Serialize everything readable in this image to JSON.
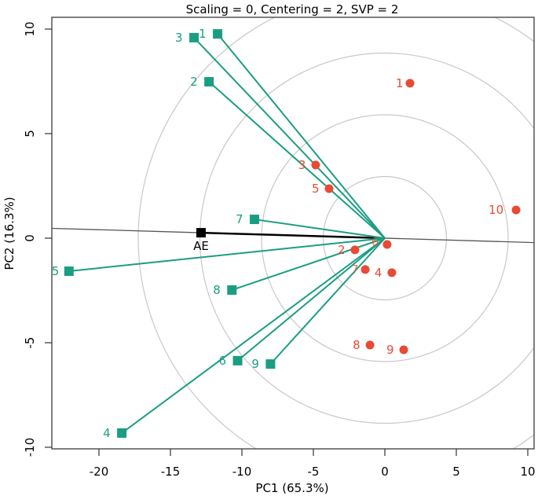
{
  "chart_data": {
    "type": "scatter",
    "title": "Scaling = 0, Centering = 2, SVP = 2",
    "xlabel": "PC1 (65.3%)",
    "ylabel": "PC2 (16.3%)",
    "xlim": [
      -23.3,
      10.4
    ],
    "ylim": [
      -10.1,
      10.5
    ],
    "xticks": [
      -20,
      -15,
      -10,
      -5,
      0,
      5,
      10
    ],
    "yticks": [
      -10,
      -5,
      0,
      5,
      10
    ],
    "xtick_labels": [
      "-20",
      "-15",
      "-10",
      "-5",
      "0",
      "5",
      "10"
    ],
    "ytick_labels": [
      "-10",
      "-5",
      "0",
      "5",
      "10"
    ],
    "grid": false,
    "colors": {
      "columns": "#1a9e82",
      "rows": "#e84a35",
      "axis_line": "#000000",
      "circles": "#c8c8c8"
    },
    "column_markers": [
      {
        "label": "1",
        "x": -11.7,
        "y": 9.77
      },
      {
        "label": "2",
        "x": -12.3,
        "y": 7.48
      },
      {
        "label": "3",
        "x": -13.35,
        "y": 9.59
      },
      {
        "label": "4",
        "x": -18.4,
        "y": -9.32
      },
      {
        "label": "5",
        "x": -22.1,
        "y": -1.58
      },
      {
        "label": "6",
        "x": -10.3,
        "y": -5.86
      },
      {
        "label": "7",
        "x": -9.12,
        "y": 0.9
      },
      {
        "label": "8",
        "x": -10.7,
        "y": -2.48
      },
      {
        "label": "9",
        "x": -8.0,
        "y": -6.02
      }
    ],
    "row_points": [
      {
        "label": "1",
        "x": 1.76,
        "y": 7.41
      },
      {
        "label": "2",
        "x": -2.09,
        "y": -0.56
      },
      {
        "label": "3",
        "x": -4.84,
        "y": 3.5
      },
      {
        "label": "4",
        "x": 0.49,
        "y": -1.65
      },
      {
        "label": "5",
        "x": -3.9,
        "y": 2.37
      },
      {
        "label": "6",
        "x": 0.16,
        "y": -0.3
      },
      {
        "label": "7",
        "x": -1.37,
        "y": -1.5
      },
      {
        "label": "8",
        "x": -1.04,
        "y": -5.11
      },
      {
        "label": "9",
        "x": 1.32,
        "y": -5.34
      },
      {
        "label": "10",
        "x": 9.18,
        "y": 1.35
      }
    ],
    "average_axis": {
      "label": "AE",
      "x": -12.86,
      "y": 0.26
    },
    "concentric_circle_count": 4
  }
}
